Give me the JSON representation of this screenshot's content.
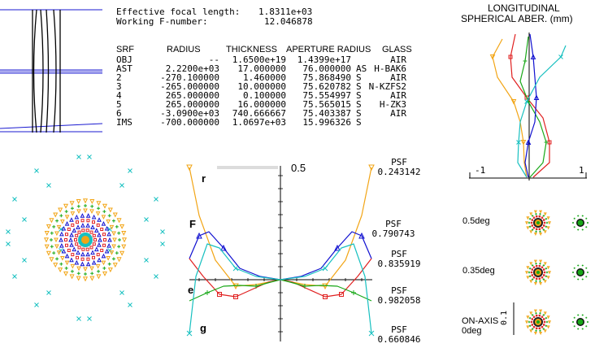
{
  "summary": {
    "efl_label": "Effective focal length:",
    "efl_value": "1.8311e+03",
    "wfno_label": "Working F-number:",
    "wfno_value": "12.046878"
  },
  "lens_table": {
    "headers": [
      "SRF",
      "RADIUS",
      "THICKNESS",
      "APERTURE RADIUS",
      "GLASS"
    ],
    "rows": [
      {
        "srf": "OBJ",
        "radius": "--",
        "thickness": "1.6500e+19",
        "aperture": "1.4399e+17",
        "flag": "",
        "glass": "AIR"
      },
      {
        "srf": "AST",
        "radius": "2.2200e+03",
        "thickness": "17.000000",
        "aperture": "76.000000",
        "flag": "AS",
        "glass": "H-BAK6"
      },
      {
        "srf": "2",
        "radius": "-270.100000",
        "thickness": "1.460000",
        "aperture": "75.868490",
        "flag": "S",
        "glass": "AIR"
      },
      {
        "srf": "3",
        "radius": "-265.000000",
        "thickness": "10.000000",
        "aperture": "75.620782",
        "flag": "S",
        "glass": "N-KZFS2"
      },
      {
        "srf": "4",
        "radius": "265.000000",
        "thickness": "0.100000",
        "aperture": "75.554997",
        "flag": "S",
        "glass": "AIR"
      },
      {
        "srf": "5",
        "radius": "265.000000",
        "thickness": "16.000000",
        "aperture": "75.565015",
        "flag": "S",
        "glass": "H-ZK3"
      },
      {
        "srf": "6",
        "radius": "-3.0900e+03",
        "thickness": "740.666667",
        "aperture": "75.403387",
        "flag": "S",
        "glass": "AIR"
      },
      {
        "srf": "IMS",
        "radius": "-700.000000",
        "thickness": "1.0697e+03",
        "aperture": "15.996326",
        "flag": "S",
        "glass": ""
      }
    ]
  },
  "longitudinal": {
    "title_line1": "LONGITUDINAL",
    "title_line2": "SPHERICAL ABER. (mm)",
    "tick_min": "-1",
    "tick_max": "1"
  },
  "ray_fan": {
    "scale_label": "0.5",
    "ray_labels": [
      "r",
      "F",
      "e",
      "g"
    ],
    "psf": [
      {
        "label": "PSF",
        "value": "0.243142"
      },
      {
        "label": "PSF",
        "value": "0.790743"
      },
      {
        "label": "PSF",
        "value": "0.835919"
      },
      {
        "label": "PSF",
        "value": "0.982058"
      },
      {
        "label": "PSF",
        "value": "0.660846"
      }
    ]
  },
  "spot_fields": [
    {
      "label": "0.5deg"
    },
    {
      "label": "0.35deg"
    },
    {
      "label": "ON-AXIS\n0deg"
    }
  ],
  "spot_scale_label": "0.1",
  "colors": {
    "r": "#f2a516",
    "F": "#1010d0",
    "e": "#18a818",
    "g": "#18c0c0",
    "d": "#e02020",
    "lens": "#000000",
    "ray": "#1a1ad0"
  },
  "icons": {
    "orange": "triangle-down",
    "blue": "triangle-up",
    "green": "plus",
    "cyan": "x-mark",
    "red": "square"
  }
}
